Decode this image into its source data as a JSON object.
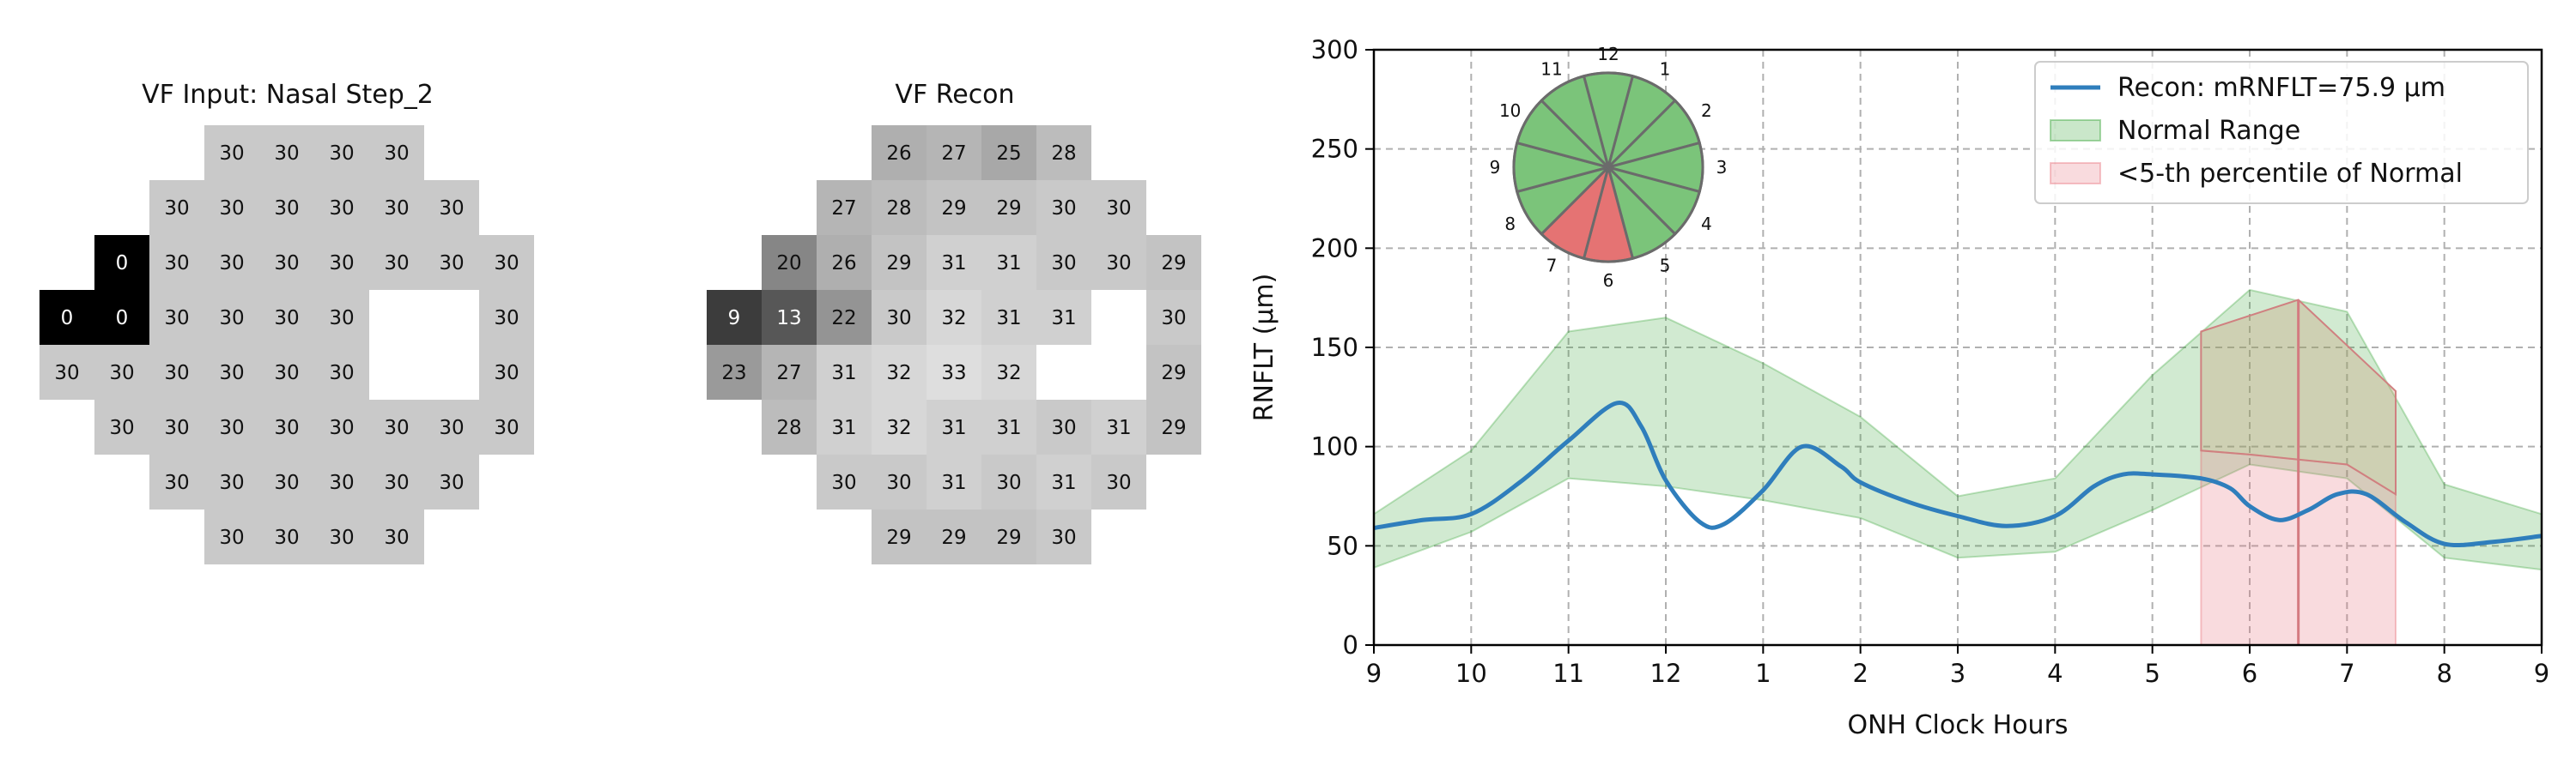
{
  "chart_data": [
    {
      "type": "heatmap",
      "title": "VF Input: Nasal Step_2",
      "grid": [
        [
          null,
          null,
          null,
          30,
          30,
          30,
          30,
          null,
          null
        ],
        [
          null,
          null,
          30,
          30,
          30,
          30,
          30,
          30,
          null
        ],
        [
          null,
          0,
          30,
          30,
          30,
          30,
          30,
          30,
          30
        ],
        [
          0,
          0,
          30,
          30,
          30,
          30,
          null,
          null,
          30
        ],
        [
          30,
          30,
          30,
          30,
          30,
          30,
          null,
          null,
          30
        ],
        [
          null,
          30,
          30,
          30,
          30,
          30,
          30,
          30,
          30
        ],
        [
          null,
          null,
          30,
          30,
          30,
          30,
          30,
          30,
          null
        ],
        [
          null,
          null,
          null,
          30,
          30,
          30,
          30,
          null,
          null
        ]
      ]
    },
    {
      "type": "heatmap",
      "title": "VF Recon",
      "grid": [
        [
          null,
          null,
          null,
          26,
          27,
          25,
          28,
          null,
          null
        ],
        [
          null,
          null,
          27,
          28,
          29,
          29,
          30,
          30,
          null
        ],
        [
          null,
          20,
          26,
          29,
          31,
          31,
          30,
          30,
          29
        ],
        [
          9,
          13,
          22,
          30,
          32,
          31,
          31,
          null,
          30
        ],
        [
          23,
          27,
          31,
          32,
          33,
          32,
          null,
          null,
          29
        ],
        [
          null,
          28,
          31,
          32,
          31,
          31,
          30,
          31,
          29
        ],
        [
          null,
          null,
          30,
          30,
          31,
          30,
          31,
          30,
          null
        ],
        [
          null,
          null,
          null,
          29,
          29,
          29,
          30,
          null,
          null
        ]
      ]
    },
    {
      "type": "line",
      "title": "",
      "xlabel": "ONH Clock Hours",
      "ylabel": "RNFLT (μm)",
      "xlim": [
        0,
        12
      ],
      "ylim": [
        0,
        300
      ],
      "x_ticks": [
        "9",
        "10",
        "11",
        "12",
        "1",
        "2",
        "3",
        "4",
        "5",
        "6",
        "7",
        "8",
        "9"
      ],
      "y_ticks": [
        0,
        50,
        100,
        150,
        200,
        250,
        300
      ],
      "grid": true,
      "legend_position": "top-right",
      "series": [
        {
          "name": "Recon: mRNFLT=75.9 μm",
          "kind": "line",
          "color": "#2f7ebc",
          "points": [
            [
              0,
              59
            ],
            [
              0.5,
              63
            ],
            [
              1,
              66
            ],
            [
              1.5,
              82
            ],
            [
              2,
              103
            ],
            [
              2.5,
              122
            ],
            [
              2.75,
              110
            ],
            [
              3,
              83
            ],
            [
              3.35,
              62
            ],
            [
              3.6,
              61
            ],
            [
              4,
              78
            ],
            [
              4.4,
              100
            ],
            [
              4.8,
              90
            ],
            [
              5,
              82
            ],
            [
              5.5,
              72
            ],
            [
              6,
              65
            ],
            [
              6.5,
              60
            ],
            [
              7,
              65
            ],
            [
              7.4,
              80
            ],
            [
              7.7,
              86
            ],
            [
              8,
              86
            ],
            [
              8.5,
              84
            ],
            [
              8.8,
              79
            ],
            [
              9,
              70
            ],
            [
              9.3,
              63
            ],
            [
              9.6,
              68
            ],
            [
              9.9,
              76
            ],
            [
              10.2,
              76
            ],
            [
              10.6,
              62
            ],
            [
              11,
              51
            ],
            [
              11.5,
              52
            ],
            [
              12,
              55
            ]
          ]
        },
        {
          "name": "Normal Range",
          "kind": "band",
          "color": "#2ca02c",
          "upper": [
            [
              0,
              66
            ],
            [
              1,
              98
            ],
            [
              2,
              158
            ],
            [
              3,
              165
            ],
            [
              4,
              142
            ],
            [
              5,
              115
            ],
            [
              6,
              75
            ],
            [
              7,
              84
            ],
            [
              8,
              136
            ],
            [
              9,
              179
            ],
            [
              10,
              168
            ],
            [
              11,
              81
            ],
            [
              12,
              66
            ]
          ],
          "lower": [
            [
              0,
              39
            ],
            [
              1,
              57
            ],
            [
              2,
              84
            ],
            [
              3,
              80
            ],
            [
              4,
              73
            ],
            [
              5,
              64
            ],
            [
              6,
              44
            ],
            [
              7,
              47
            ],
            [
              8,
              68
            ],
            [
              9,
              91
            ],
            [
              10,
              84
            ],
            [
              11,
              44
            ],
            [
              12,
              38
            ]
          ]
        },
        {
          "name": "<5-th percentile of Normal",
          "kind": "band",
          "color": "#e8707a",
          "upper": [
            [
              8.5,
              98
            ],
            [
              9,
              96
            ],
            [
              10,
              91
            ],
            [
              10.5,
              76
            ]
          ],
          "lower": [
            [
              8.5,
              0
            ],
            [
              10.5,
              0
            ]
          ]
        }
      ],
      "highlight": {
        "region": [
          [
            8.5,
            158
          ],
          [
            9.5,
            174
          ],
          [
            10.5,
            128
          ],
          [
            10.5,
            76
          ],
          [
            10,
            91
          ],
          [
            9,
            96
          ],
          [
            8.5,
            98
          ]
        ],
        "vline_x": 9.5
      },
      "inset": {
        "labels": [
          "12",
          "1",
          "2",
          "3",
          "4",
          "5",
          "6",
          "7",
          "8",
          "9",
          "10",
          "11"
        ],
        "abnormal_sectors": [
          "6",
          "7"
        ],
        "normal_color": "#7bc47a",
        "abnormal_color": "#e57373"
      }
    }
  ]
}
